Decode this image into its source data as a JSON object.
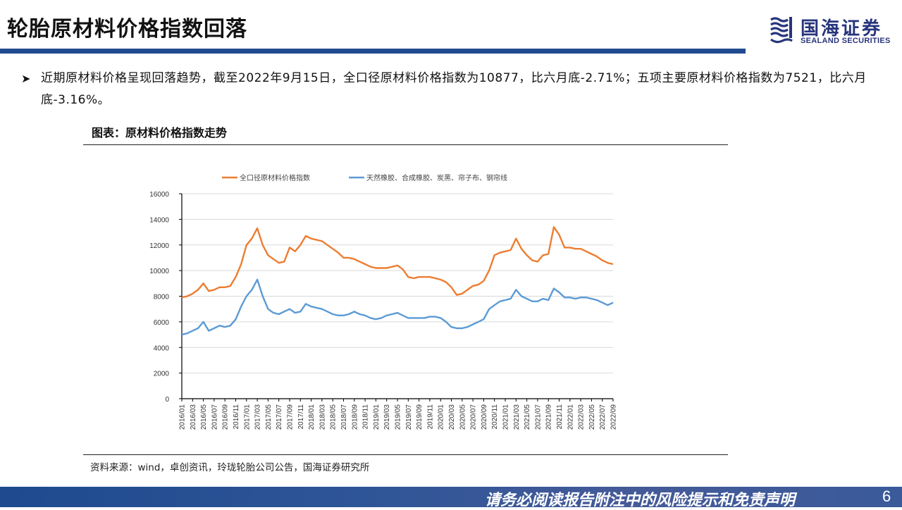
{
  "header": {
    "title": "轮胎原材料价格指数回落",
    "logo_cn": "国海证券",
    "logo_en": "SEALAND SECURITIES",
    "bar_color": "#1f4a8f"
  },
  "body": {
    "bullet_icon": "arrow-bullet-icon",
    "bullet_text": "近期原材料价格呈现回落趋势，截至2022年9月15日，全口径原材料价格指数为10877，比六月底-2.71%；五项主要原材料价格指数为7521，比六月底-3.16%。",
    "chart_caption": "图表：原材料价格指数走势",
    "source": "资料来源：wind，卓创资讯，玲珑轮胎公司公告，国海证券研究所"
  },
  "footer": {
    "disclaimer": "请务必阅读报告附注中的风险提示和免责声明",
    "page_number": "6"
  },
  "chart_data": {
    "type": "line",
    "title": "原材料价格指数走势",
    "xlabel": "",
    "ylabel": "",
    "ylim": [
      0,
      16000
    ],
    "yticks": [
      0,
      2000,
      4000,
      6000,
      8000,
      10000,
      12000,
      14000,
      16000
    ],
    "grid": true,
    "legend_position": "top",
    "x_tick_labels": [
      "2016/01",
      "2016/03",
      "2016/05",
      "2016/07",
      "2016/09",
      "2016/11",
      "2017/01",
      "2017/03",
      "2017/05",
      "2017/07",
      "2017/09",
      "2017/11",
      "2018/01",
      "2018/03",
      "2018/05",
      "2018/07",
      "2018/09",
      "2018/11",
      "2019/01",
      "2019/03",
      "2019/05",
      "2019/07",
      "2019/09",
      "2019/11",
      "2020/01",
      "2020/03",
      "2020/05",
      "2020/07",
      "2020/09",
      "2020/11",
      "2021/01",
      "2021/03",
      "2021/05",
      "2021/07",
      "2021/09",
      "2021/11",
      "2022/01",
      "2022/03",
      "2022/05",
      "2022/07",
      "2022/09"
    ],
    "x": [
      "2016/01",
      "2016/02",
      "2016/03",
      "2016/04",
      "2016/05",
      "2016/06",
      "2016/07",
      "2016/08",
      "2016/09",
      "2016/10",
      "2016/11",
      "2016/12",
      "2017/01",
      "2017/02",
      "2017/03",
      "2017/04",
      "2017/05",
      "2017/06",
      "2017/07",
      "2017/08",
      "2017/09",
      "2017/10",
      "2017/11",
      "2017/12",
      "2018/01",
      "2018/02",
      "2018/03",
      "2018/04",
      "2018/05",
      "2018/06",
      "2018/07",
      "2018/08",
      "2018/09",
      "2018/10",
      "2018/11",
      "2018/12",
      "2019/01",
      "2019/02",
      "2019/03",
      "2019/04",
      "2019/05",
      "2019/06",
      "2019/07",
      "2019/08",
      "2019/09",
      "2019/10",
      "2019/11",
      "2019/12",
      "2020/01",
      "2020/02",
      "2020/03",
      "2020/04",
      "2020/05",
      "2020/06",
      "2020/07",
      "2020/08",
      "2020/09",
      "2020/10",
      "2020/11",
      "2020/12",
      "2021/01",
      "2021/02",
      "2021/03",
      "2021/04",
      "2021/05",
      "2021/06",
      "2021/07",
      "2021/08",
      "2021/09",
      "2021/10",
      "2021/11",
      "2021/12",
      "2022/01",
      "2022/02",
      "2022/03",
      "2022/04",
      "2022/05",
      "2022/06",
      "2022/07",
      "2022/08",
      "2022/09"
    ],
    "series": [
      {
        "name": "全口径原材料价格指数",
        "color": "#ed7d31",
        "values": [
          7900,
          8000,
          8200,
          8500,
          9000,
          8400,
          8500,
          8700,
          8700,
          8800,
          9500,
          10500,
          12000,
          12500,
          13300,
          12000,
          11200,
          10900,
          10600,
          10700,
          11800,
          11500,
          12000,
          12700,
          12500,
          12400,
          12300,
          12000,
          11700,
          11400,
          11000,
          11000,
          10900,
          10700,
          10500,
          10300,
          10200,
          10200,
          10200,
          10300,
          10400,
          10100,
          9500,
          9400,
          9500,
          9500,
          9500,
          9400,
          9300,
          9100,
          8700,
          8100,
          8200,
          8500,
          8800,
          8900,
          9200,
          10000,
          11200,
          11400,
          11500,
          11600,
          12500,
          11700,
          11200,
          10800,
          10700,
          11200,
          11300,
          13400,
          12800,
          11800,
          11800,
          11700,
          11700,
          11500,
          11300,
          11100,
          10800,
          10600,
          10500
        ]
      },
      {
        "name": "天然橡胶、合成橡胶、炭黑、帘子布、钢帘线",
        "color": "#5b9bd5",
        "values": [
          5000,
          5100,
          5300,
          5500,
          6000,
          5300,
          5500,
          5700,
          5600,
          5700,
          6200,
          7200,
          8000,
          8500,
          9300,
          8000,
          7000,
          6700,
          6600,
          6800,
          7000,
          6700,
          6800,
          7400,
          7200,
          7100,
          7000,
          6800,
          6600,
          6500,
          6500,
          6600,
          6800,
          6600,
          6500,
          6300,
          6200,
          6300,
          6500,
          6600,
          6700,
          6500,
          6300,
          6300,
          6300,
          6300,
          6400,
          6400,
          6300,
          6000,
          5600,
          5500,
          5500,
          5600,
          5800,
          6000,
          6200,
          7000,
          7300,
          7600,
          7700,
          7800,
          8500,
          8000,
          7800,
          7600,
          7600,
          7800,
          7700,
          8600,
          8300,
          7900,
          7900,
          7800,
          7900,
          7900,
          7800,
          7700,
          7500,
          7300,
          7500
        ]
      }
    ]
  }
}
